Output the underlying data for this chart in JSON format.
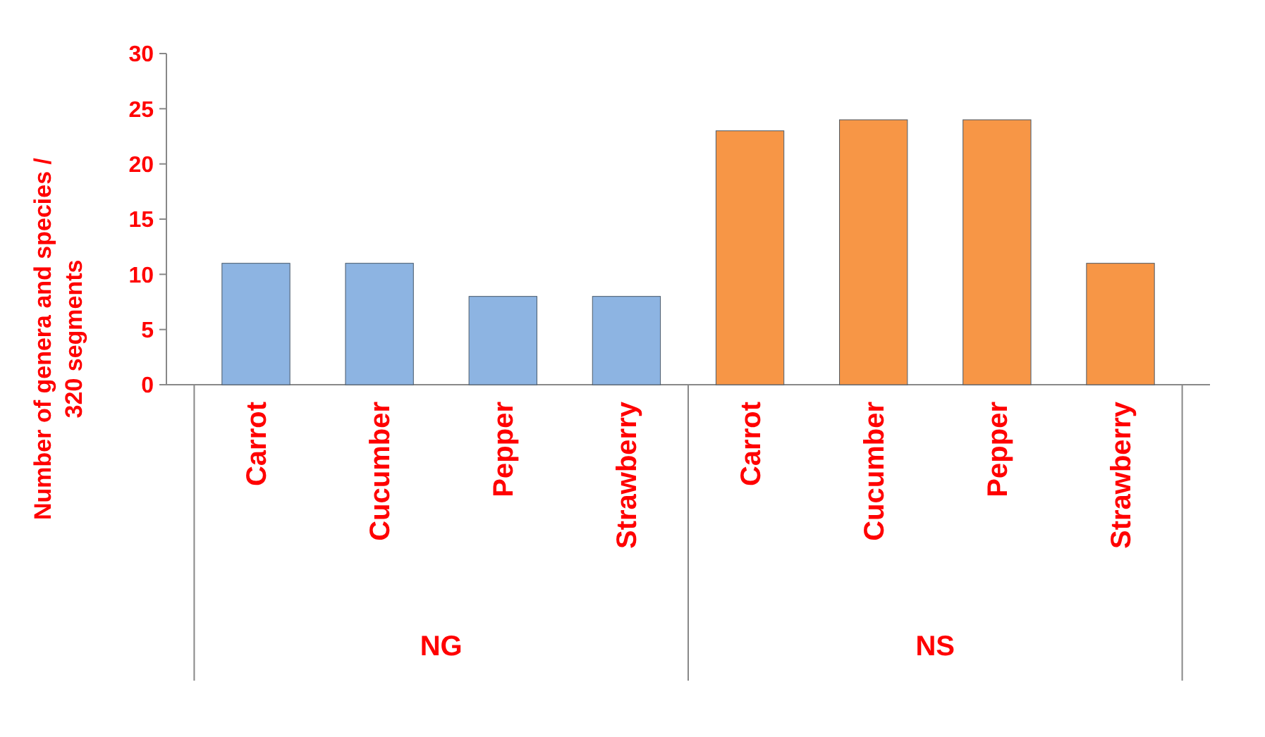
{
  "chart_data": {
    "type": "bar",
    "ylabel": "Number of genera and species / 320 segments",
    "categories": [
      "Carrot",
      "Cucumber",
      "Pepper",
      "Strawberry",
      "Carrot",
      "Cucumber",
      "Pepper",
      "Strawberry"
    ],
    "values": [
      11,
      11,
      8,
      8,
      23,
      24,
      24,
      11
    ],
    "colors": [
      "#8db4e2",
      "#8db4e2",
      "#8db4e2",
      "#8db4e2",
      "#f79646",
      "#f79646",
      "#f79646",
      "#f79646"
    ],
    "annotations": [
      "NG",
      "NS"
    ],
    "ylim": [
      0,
      30
    ],
    "yticks": [
      0,
      5,
      10,
      15,
      20,
      25,
      30
    ],
    "grid": false
  }
}
